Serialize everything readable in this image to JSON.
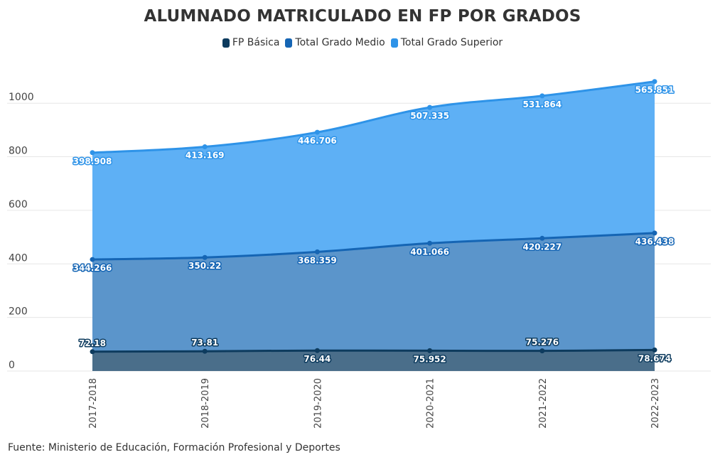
{
  "chart_data": {
    "type": "area",
    "stacked": true,
    "title": "ALUMNADO MATRICULADO EN FP POR GRADOS",
    "source": "Fuente: Ministerio de Educación, Formación Profesional y Deportes",
    "categories": [
      "2017-2018",
      "2018-2019",
      "2019-2020",
      "2020-2021",
      "2021-2022",
      "2022-2023"
    ],
    "yticks": [
      "0",
      "200",
      "400",
      "600",
      "800",
      "1000"
    ],
    "ylim": [
      0,
      1000
    ],
    "grid": true,
    "legend_position": "top-center",
    "series": [
      {
        "name": "FP Básica",
        "color": "#0d3b5e",
        "fill": "#4a6e8a",
        "values": [
          72.18,
          73.81,
          76.44,
          75.952,
          75.276,
          78.674
        ],
        "labels": [
          "72.18",
          "73.81",
          "76.44",
          "75.952",
          "75.276",
          "78.674"
        ]
      },
      {
        "name": "Total Grado Medio",
        "color": "#1565b4",
        "fill": "#5b95cb",
        "values": [
          344.266,
          350.22,
          368.359,
          401.066,
          420.227,
          436.438
        ],
        "labels": [
          "344.266",
          "350.22",
          "368.359",
          "401.066",
          "420.227",
          "436.438"
        ]
      },
      {
        "name": "Total Grado Superior",
        "color": "#2e93e8",
        "fill": "#5eb0f5",
        "values": [
          398.908,
          413.169,
          446.706,
          507.335,
          531.864,
          565.851
        ],
        "labels": [
          "398.908",
          "413.169",
          "446.706",
          "507.335",
          "531.864",
          "565.851"
        ]
      }
    ]
  }
}
